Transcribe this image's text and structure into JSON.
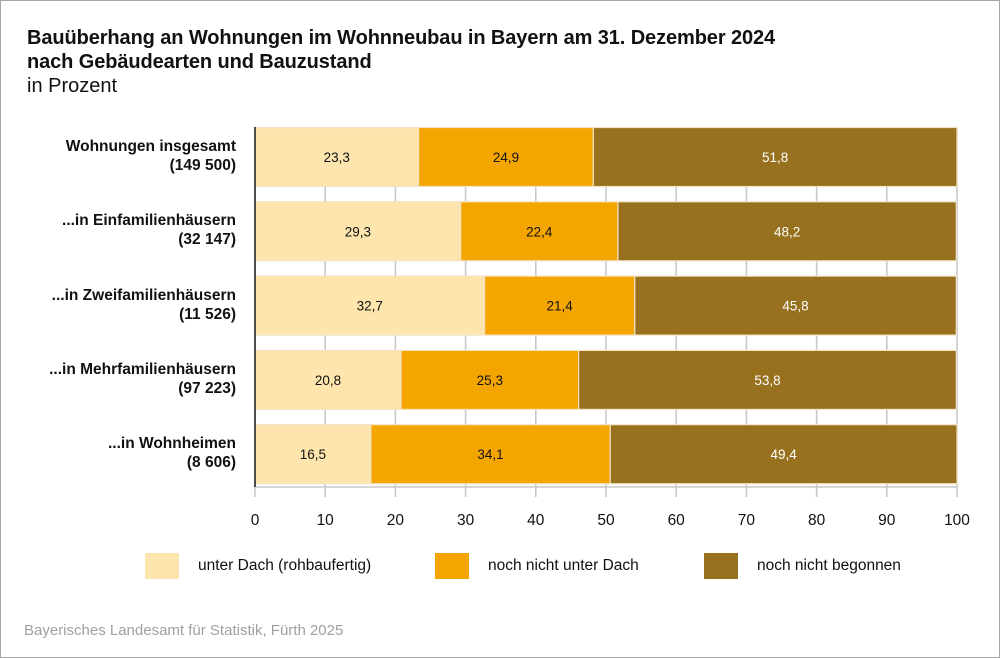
{
  "title_line1": "Bauüberhang an Wohnungen im Wohnneubau in Bayern am 31. Dezember 2024",
  "title_line2": "nach Gebäudearten und Bauzustand",
  "subtitle": "in Prozent",
  "source": "Bayerisches Landesamt für Statistik, Fürth 2025",
  "colors": {
    "unter_dach": "#fde5ad",
    "noch_nicht_unter_dach": "#f5a500",
    "noch_nicht_begonnen": "#98711f",
    "grid": "#c8c8c8",
    "axis": "#222222"
  },
  "chart_data": {
    "type": "bar",
    "orientation": "horizontal",
    "stacked": true,
    "title": "Bauüberhang an Wohnungen im Wohnneubau in Bayern am 31. Dezember 2024 nach Gebäudearten und Bauzustand",
    "subtitle": "in Prozent",
    "xlabel": "",
    "ylabel": "",
    "xlim": [
      0,
      100
    ],
    "xticks": [
      0,
      10,
      20,
      30,
      40,
      50,
      60,
      70,
      80,
      90,
      100
    ],
    "grid": true,
    "legend_position": "bottom",
    "categories": [
      {
        "line1": "Wohnungen insgesamt",
        "line2": "(149 500)"
      },
      {
        "line1": "...in Einfamilienhäusern",
        "line2": "(32 147)"
      },
      {
        "line1": "...in Zweifamilienhäusern",
        "line2": "(11 526)"
      },
      {
        "line1": "...in Mehrfamilienhäusern",
        "line2": "(97 223)"
      },
      {
        "line1": "...in Wohnheimen",
        "line2": "(8 606)"
      }
    ],
    "series": [
      {
        "name": "unter Dach (rohbaufertig)",
        "color": "#fde5ad",
        "label_color": "#111111",
        "values": [
          23.3,
          29.3,
          32.7,
          20.8,
          16.5
        ],
        "labels": [
          "23,3",
          "29,3",
          "32,7",
          "20,8",
          "16,5"
        ]
      },
      {
        "name": "noch nicht unter Dach",
        "color": "#f5a500",
        "label_color": "#111111",
        "values": [
          24.9,
          22.4,
          21.4,
          25.3,
          34.1
        ],
        "labels": [
          "24,9",
          "22,4",
          "21,4",
          "25,3",
          "34,1"
        ]
      },
      {
        "name": "noch nicht begonnen",
        "color": "#98711f",
        "label_color": "#ffffff",
        "values": [
          51.8,
          48.2,
          45.8,
          53.8,
          49.4
        ],
        "labels": [
          "51,8",
          "48,2",
          "45,8",
          "53,8",
          "49,4"
        ]
      }
    ]
  }
}
